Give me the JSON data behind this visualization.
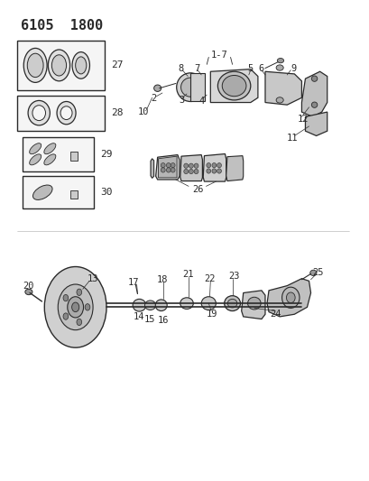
{
  "title": "6105  1800",
  "bg_color": "#ffffff",
  "line_color": "#2a2a2a",
  "title_fontsize": 11,
  "label_fontsize": 8,
  "fig_width": 4.1,
  "fig_height": 5.33,
  "dpi": 100
}
